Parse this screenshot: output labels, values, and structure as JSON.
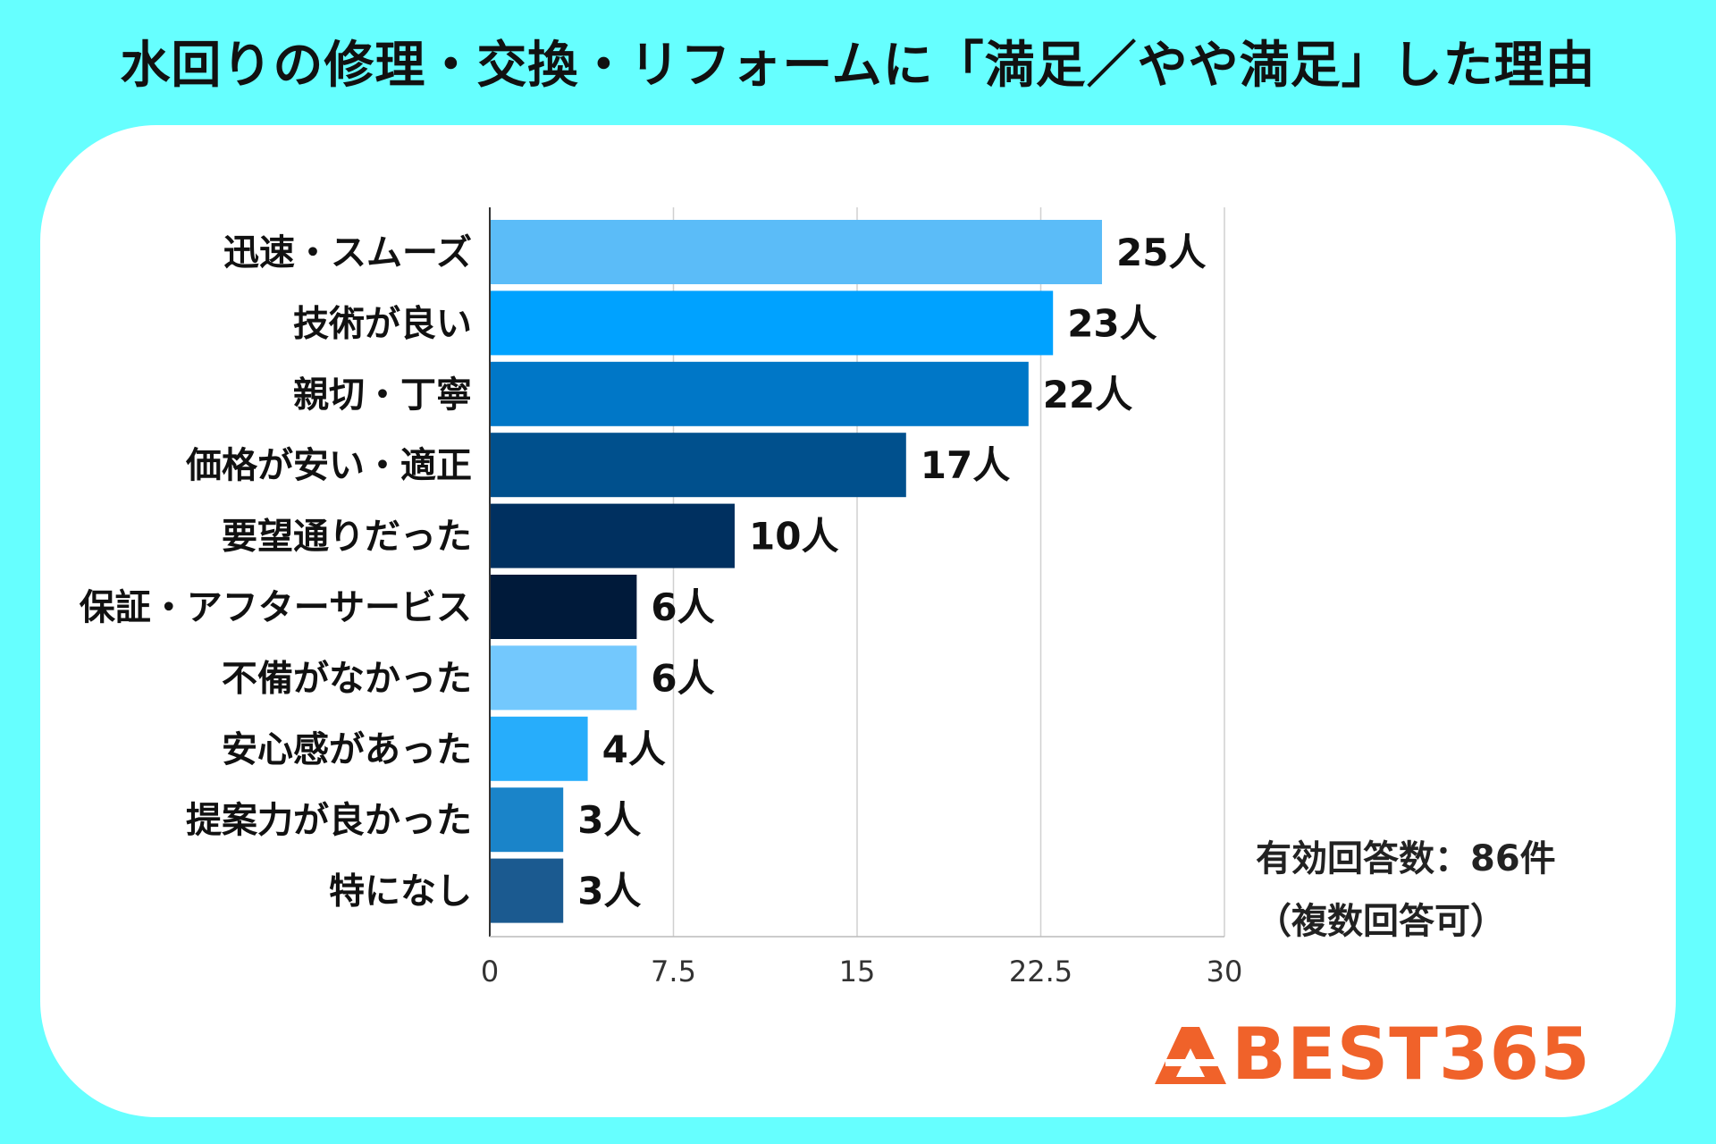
{
  "title": "水回りの修理・交換・リフォームに「満足／やや満足」した理由",
  "note": {
    "responses": "有効回答数：86件",
    "multiple": "（複数回答可）"
  },
  "logo": {
    "text": "BEST365"
  },
  "chart_data": {
    "type": "bar",
    "orientation": "horizontal",
    "categories": [
      "迅速・スムーズ",
      "技術が良い",
      "親切・丁寧",
      "価格が安い・適正",
      "要望通りだった",
      "保証・アフターサービス",
      "不備がなかった",
      "安心感があった",
      "提案力が良かった",
      "特になし"
    ],
    "values": [
      25,
      23,
      22,
      17,
      10,
      6,
      6,
      4,
      3,
      3
    ],
    "value_suffix": "人",
    "colors": [
      "#5bbcf8",
      "#00a2ff",
      "#0077c7",
      "#00508d",
      "#003060",
      "#001a3a",
      "#73c8fd",
      "#27adfb",
      "#1a84c9",
      "#1b5a90"
    ],
    "xlim": [
      0,
      30
    ],
    "xticks": [
      "0",
      "7.5",
      "15",
      "22.5",
      "30"
    ],
    "grid": true
  }
}
